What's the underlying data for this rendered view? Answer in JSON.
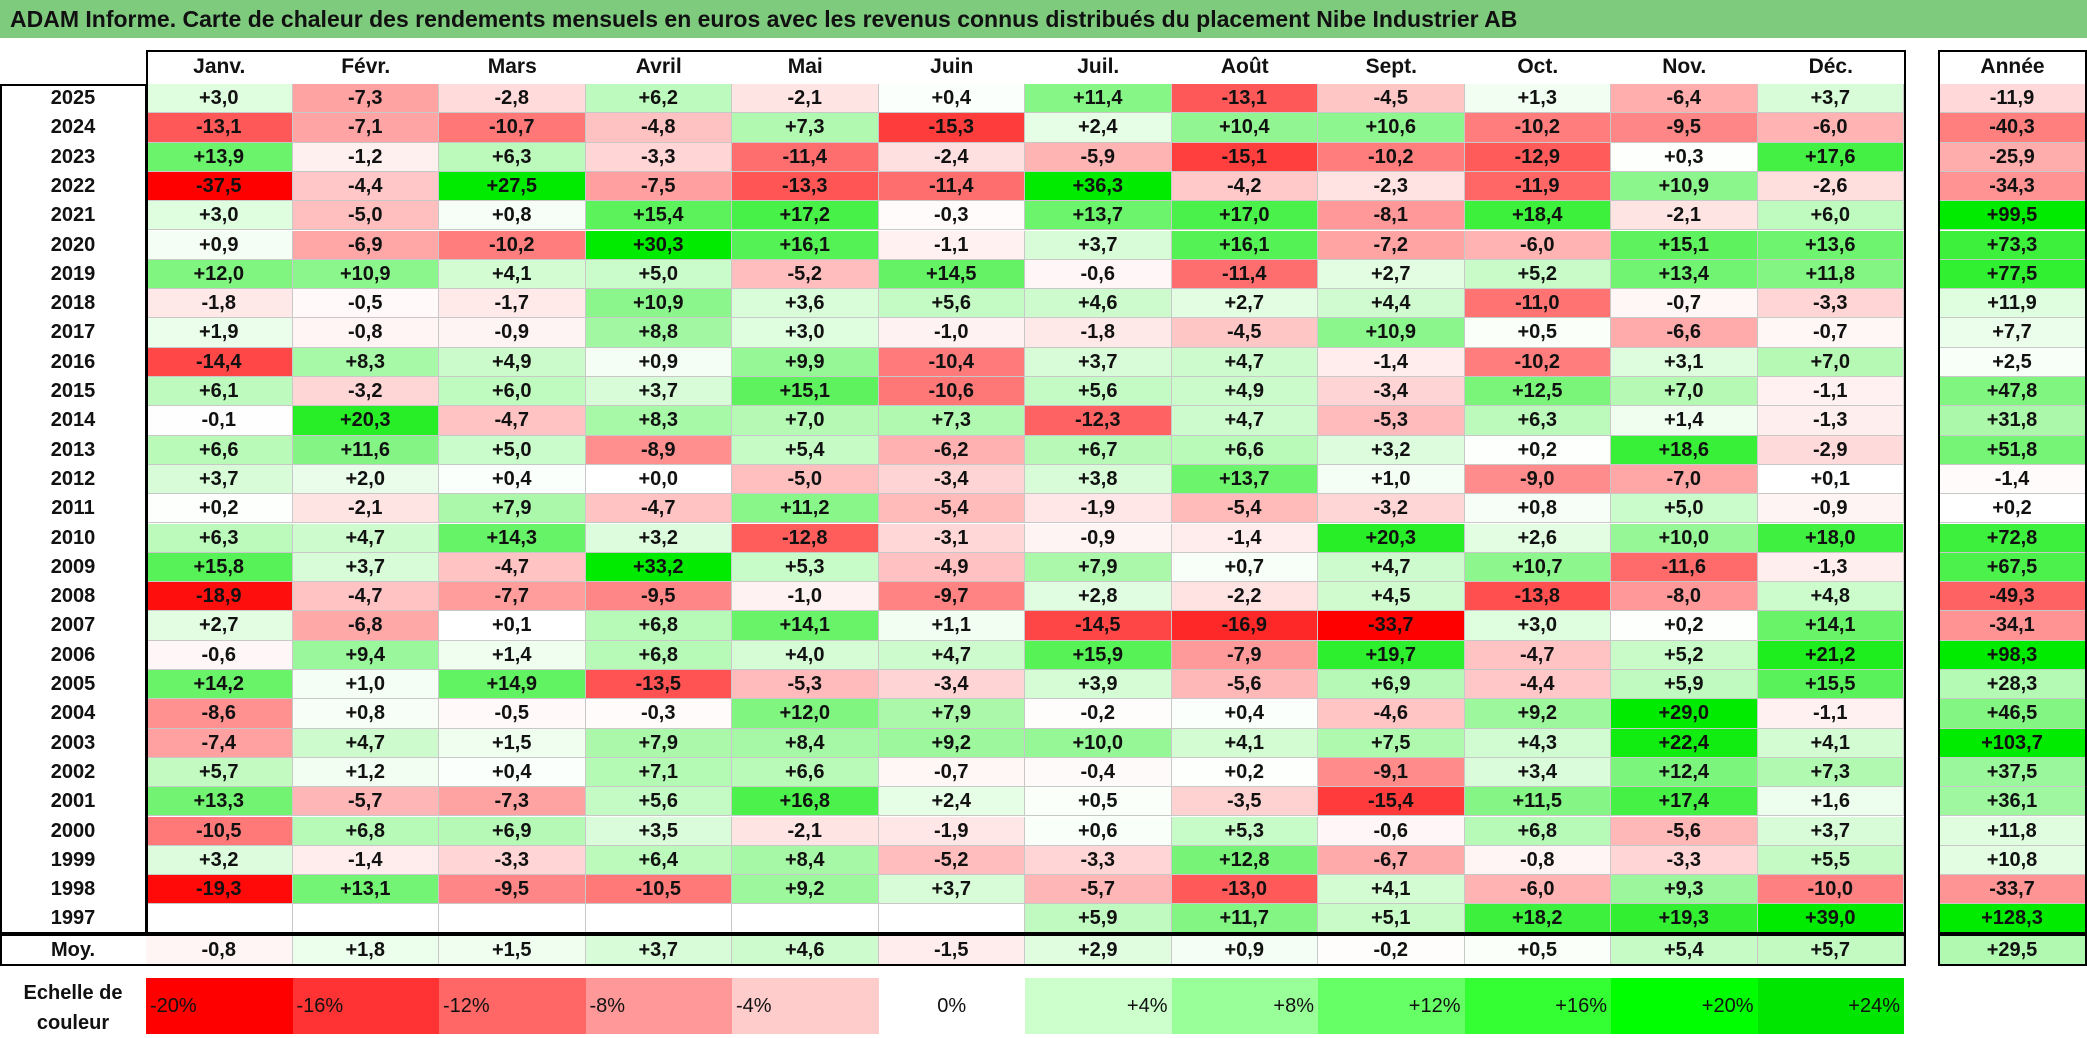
{
  "title": "ADAM Informe. Carte de chaleur des rendements mensuels en euros avec les revenus connus distribués du placement Nibe Industrier AB",
  "chart_data": {
    "type": "heatmap",
    "months": [
      "Janv.",
      "Févr.",
      "Mars",
      "Avril",
      "Mai",
      "Juin",
      "Juil.",
      "Août",
      "Sept.",
      "Oct.",
      "Nov.",
      "Déc."
    ],
    "year_header": "Année",
    "avg_label": "Moy.",
    "rows": [
      {
        "year": "2025",
        "values": [
          "+3,0",
          "-7,3",
          "-2,8",
          "+6,2",
          "-2,1",
          "+0,4",
          "+11,4",
          "-13,1",
          "-4,5",
          "+1,3",
          "-6,4",
          "+3,7"
        ],
        "annual": "-11,9"
      },
      {
        "year": "2024",
        "values": [
          "-13,1",
          "-7,1",
          "-10,7",
          "-4,8",
          "+7,3",
          "-15,3",
          "+2,4",
          "+10,4",
          "+10,6",
          "-10,2",
          "-9,5",
          "-6,0"
        ],
        "annual": "-40,3"
      },
      {
        "year": "2023",
        "values": [
          "+13,9",
          "-1,2",
          "+6,3",
          "-3,3",
          "-11,4",
          "-2,4",
          "-5,9",
          "-15,1",
          "-10,2",
          "-12,9",
          "+0,3",
          "+17,6"
        ],
        "annual": "-25,9"
      },
      {
        "year": "2022",
        "values": [
          "-37,5",
          "-4,4",
          "+27,5",
          "-7,5",
          "-13,3",
          "-11,4",
          "+36,3",
          "-4,2",
          "-2,3",
          "-11,9",
          "+10,9",
          "-2,6"
        ],
        "annual": "-34,3"
      },
      {
        "year": "2021",
        "values": [
          "+3,0",
          "-5,0",
          "+0,8",
          "+15,4",
          "+17,2",
          "-0,3",
          "+13,7",
          "+17,0",
          "-8,1",
          "+18,4",
          "-2,1",
          "+6,0"
        ],
        "annual": "+99,5"
      },
      {
        "year": "2020",
        "values": [
          "+0,9",
          "-6,9",
          "-10,2",
          "+30,3",
          "+16,1",
          "-1,1",
          "+3,7",
          "+16,1",
          "-7,2",
          "-6,0",
          "+15,1",
          "+13,6"
        ],
        "annual": "+73,3"
      },
      {
        "year": "2019",
        "values": [
          "+12,0",
          "+10,9",
          "+4,1",
          "+5,0",
          "-5,2",
          "+14,5",
          "-0,6",
          "-11,4",
          "+2,7",
          "+5,2",
          "+13,4",
          "+11,8"
        ],
        "annual": "+77,5"
      },
      {
        "year": "2018",
        "values": [
          "-1,8",
          "-0,5",
          "-1,7",
          "+10,9",
          "+3,6",
          "+5,6",
          "+4,6",
          "+2,7",
          "+4,4",
          "-11,0",
          "-0,7",
          "-3,3"
        ],
        "annual": "+11,9"
      },
      {
        "year": "2017",
        "values": [
          "+1,9",
          "-0,8",
          "-0,9",
          "+8,8",
          "+3,0",
          "-1,0",
          "-1,8",
          "-4,5",
          "+10,9",
          "+0,5",
          "-6,6",
          "-0,7"
        ],
        "annual": "+7,7"
      },
      {
        "year": "2016",
        "values": [
          "-14,4",
          "+8,3",
          "+4,9",
          "+0,9",
          "+9,9",
          "-10,4",
          "+3,7",
          "+4,7",
          "-1,4",
          "-10,2",
          "+3,1",
          "+7,0"
        ],
        "annual": "+2,5"
      },
      {
        "year": "2015",
        "values": [
          "+6,1",
          "-3,2",
          "+6,0",
          "+3,7",
          "+15,1",
          "-10,6",
          "+5,6",
          "+4,9",
          "-3,4",
          "+12,5",
          "+7,0",
          "-1,1"
        ],
        "annual": "+47,8"
      },
      {
        "year": "2014",
        "values": [
          "-0,1",
          "+20,3",
          "-4,7",
          "+8,3",
          "+7,0",
          "+7,3",
          "-12,3",
          "+4,7",
          "-5,3",
          "+6,3",
          "+1,4",
          "-1,3"
        ],
        "annual": "+31,8"
      },
      {
        "year": "2013",
        "values": [
          "+6,6",
          "+11,6",
          "+5,0",
          "-8,9",
          "+5,4",
          "-6,2",
          "+6,7",
          "+6,6",
          "+3,2",
          "+0,2",
          "+18,6",
          "-2,9"
        ],
        "annual": "+51,8"
      },
      {
        "year": "2012",
        "values": [
          "+3,7",
          "+2,0",
          "+0,4",
          "+0,0",
          "-5,0",
          "-3,4",
          "+3,8",
          "+13,7",
          "+1,0",
          "-9,0",
          "-7,0",
          "+0,1"
        ],
        "annual": "-1,4"
      },
      {
        "year": "2011",
        "values": [
          "+0,2",
          "-2,1",
          "+7,9",
          "-4,7",
          "+11,2",
          "-5,4",
          "-1,9",
          "-5,4",
          "-3,2",
          "+0,8",
          "+5,0",
          "-0,9"
        ],
        "annual": "+0,2"
      },
      {
        "year": "2010",
        "values": [
          "+6,3",
          "+4,7",
          "+14,3",
          "+3,2",
          "-12,8",
          "-3,1",
          "-0,9",
          "-1,4",
          "+20,3",
          "+2,6",
          "+10,0",
          "+18,0"
        ],
        "annual": "+72,8"
      },
      {
        "year": "2009",
        "values": [
          "+15,8",
          "+3,7",
          "-4,7",
          "+33,2",
          "+5,3",
          "-4,9",
          "+7,9",
          "+0,7",
          "+4,7",
          "+10,7",
          "-11,6",
          "-1,3"
        ],
        "annual": "+67,5"
      },
      {
        "year": "2008",
        "values": [
          "-18,9",
          "-4,7",
          "-7,7",
          "-9,5",
          "-1,0",
          "-9,7",
          "+2,8",
          "-2,2",
          "+4,5",
          "-13,8",
          "-8,0",
          "+4,8"
        ],
        "annual": "-49,3"
      },
      {
        "year": "2007",
        "values": [
          "+2,7",
          "-6,8",
          "+0,1",
          "+6,8",
          "+14,1",
          "+1,1",
          "-14,5",
          "-16,9",
          "-33,7",
          "+3,0",
          "+0,2",
          "+14,1"
        ],
        "annual": "-34,1"
      },
      {
        "year": "2006",
        "values": [
          "-0,6",
          "+9,4",
          "+1,4",
          "+6,8",
          "+4,0",
          "+4,7",
          "+15,9",
          "-7,9",
          "+19,7",
          "-4,7",
          "+5,2",
          "+21,2"
        ],
        "annual": "+98,3"
      },
      {
        "year": "2005",
        "values": [
          "+14,2",
          "+1,0",
          "+14,9",
          "-13,5",
          "-5,3",
          "-3,4",
          "+3,9",
          "-5,6",
          "+6,9",
          "-4,4",
          "+5,9",
          "+15,5"
        ],
        "annual": "+28,3"
      },
      {
        "year": "2004",
        "values": [
          "-8,6",
          "+0,8",
          "-0,5",
          "-0,3",
          "+12,0",
          "+7,9",
          "-0,2",
          "+0,4",
          "-4,6",
          "+9,2",
          "+29,0",
          "-1,1"
        ],
        "annual": "+46,5"
      },
      {
        "year": "2003",
        "values": [
          "-7,4",
          "+4,7",
          "+1,5",
          "+7,9",
          "+8,4",
          "+9,2",
          "+10,0",
          "+4,1",
          "+7,5",
          "+4,3",
          "+22,4",
          "+4,1"
        ],
        "annual": "+103,7"
      },
      {
        "year": "2002",
        "values": [
          "+5,7",
          "+1,2",
          "+0,4",
          "+7,1",
          "+6,6",
          "-0,7",
          "-0,4",
          "+0,2",
          "-9,1",
          "+3,4",
          "+12,4",
          "+7,3"
        ],
        "annual": "+37,5"
      },
      {
        "year": "2001",
        "values": [
          "+13,3",
          "-5,7",
          "-7,3",
          "+5,6",
          "+16,8",
          "+2,4",
          "+0,5",
          "-3,5",
          "-15,4",
          "+11,5",
          "+17,4",
          "+1,6"
        ],
        "annual": "+36,1"
      },
      {
        "year": "2000",
        "values": [
          "-10,5",
          "+6,8",
          "+6,9",
          "+3,5",
          "-2,1",
          "-1,9",
          "+0,6",
          "+5,3",
          "-0,6",
          "+6,8",
          "-5,6",
          "+3,7"
        ],
        "annual": "+11,8"
      },
      {
        "year": "1999",
        "values": [
          "+3,2",
          "-1,4",
          "-3,3",
          "+6,4",
          "+8,4",
          "-5,2",
          "-3,3",
          "+12,8",
          "-6,7",
          "-0,8",
          "-3,3",
          "+5,5"
        ],
        "annual": "+10,8"
      },
      {
        "year": "1998",
        "values": [
          "-19,3",
          "+13,1",
          "-9,5",
          "-10,5",
          "+9,2",
          "+3,7",
          "-5,7",
          "-13,0",
          "+4,1",
          "-6,0",
          "+9,3",
          "-10,0"
        ],
        "annual": "-33,7"
      },
      {
        "year": "1997",
        "values": [
          "",
          "",
          "",
          "",
          "",
          "",
          "+5,9",
          "+11,7",
          "+5,1",
          "+18,2",
          "+19,3",
          "+39,0"
        ],
        "annual": "+128,3"
      }
    ],
    "averages": {
      "values": [
        "-0,8",
        "+1,8",
        "+1,5",
        "+3,7",
        "+4,6",
        "-1,5",
        "+2,9",
        "+0,9",
        "-0,2",
        "+0,5",
        "+5,4",
        "+5,7"
      ],
      "annual": "+29,5"
    },
    "scale": {
      "label_line1": "Echelle de",
      "label_line2": "couleur",
      "steps": [
        {
          "label": "-20%",
          "color": "#ff0000"
        },
        {
          "label": "-16%",
          "color": "#ff3333"
        },
        {
          "label": "-12%",
          "color": "#ff6666"
        },
        {
          "label": "-8%",
          "color": "#ff9999"
        },
        {
          "label": "-4%",
          "color": "#ffcccc"
        },
        {
          "label": "0%",
          "color": "#ffffff"
        },
        {
          "label": "+4%",
          "color": "#ccffcc"
        },
        {
          "label": "+8%",
          "color": "#99ff99"
        },
        {
          "label": "+12%",
          "color": "#66ff66"
        },
        {
          "label": "+16%",
          "color": "#33ff33"
        },
        {
          "label": "+20%",
          "color": "#00ff00"
        },
        {
          "label": "+24%",
          "color": "#00e600"
        }
      ]
    }
  }
}
